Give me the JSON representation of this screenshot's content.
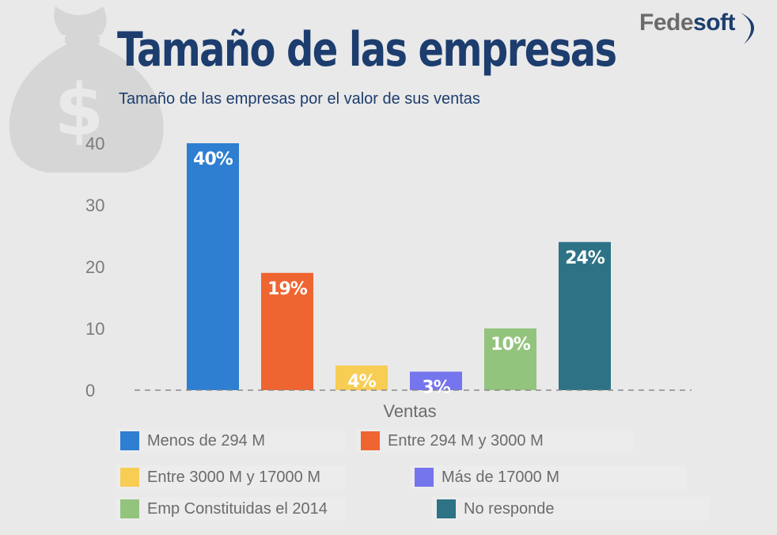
{
  "logo": {
    "part_a": "Fede",
    "part_b": "soft"
  },
  "title": "Tamaño de las empresas",
  "subtitle": "Tamaño de las empresas por el valor de sus ventas",
  "chart_data": {
    "type": "bar",
    "title": "Tamaño de las empresas",
    "subtitle": "Tamaño de las empresas por el valor de sus ventas",
    "xlabel": "Ventas",
    "ylabel": "",
    "ylim": [
      0,
      40
    ],
    "yticks": [
      0,
      10,
      20,
      30,
      40
    ],
    "grid": false,
    "legend_position": "bottom",
    "series": [
      {
        "name": "Menos de 294 M",
        "value": 40,
        "label": "40%",
        "color": "#2e7fd1"
      },
      {
        "name": "Entre 294 M y 3000 M",
        "value": 19,
        "label": "19%",
        "color": "#ee6531"
      },
      {
        "name": "Entre 3000 M y 17000 M",
        "value": 4,
        "label": "4%",
        "color": "#f8cd54"
      },
      {
        "name": "Más de 17000 M",
        "value": 3,
        "label": "3%",
        "color": "#7575ee"
      },
      {
        "name": "Emp Constituidas el 2014",
        "value": 10,
        "label": "10%",
        "color": "#93c47d"
      },
      {
        "name": "No responde",
        "value": 24,
        "label": "24%",
        "color": "#2d7385"
      }
    ]
  }
}
